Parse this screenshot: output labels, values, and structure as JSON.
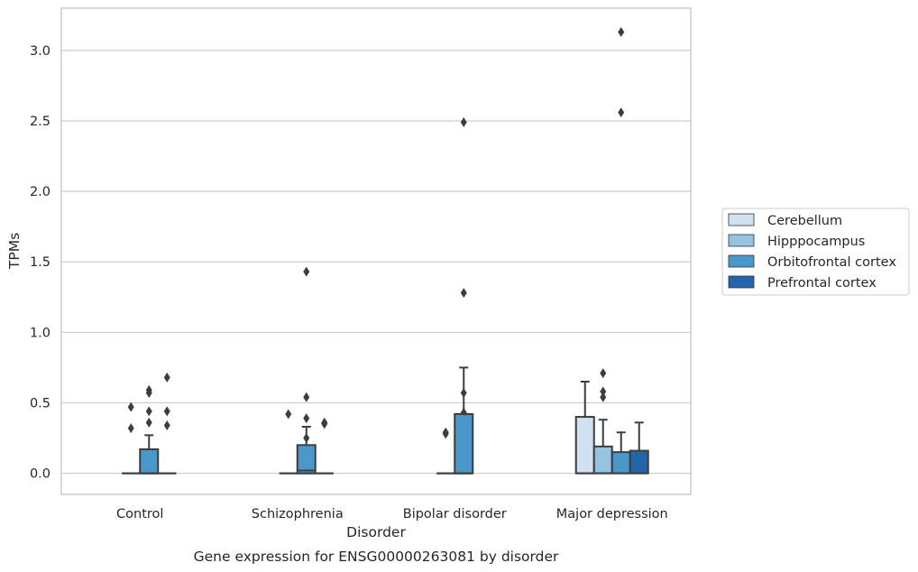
{
  "chart_data": {
    "type": "box",
    "title": "",
    "caption": "Gene expression for ENSG00000263081 by disorder",
    "xlabel": "Disorder",
    "ylabel": "TPMs",
    "ylim": [
      -0.15,
      3.3
    ],
    "yticks": [
      0.0,
      0.5,
      1.0,
      1.5,
      2.0,
      2.5,
      3.0
    ],
    "ytick_labels": [
      "0.0",
      "0.5",
      "1.0",
      "1.5",
      "2.0",
      "2.5",
      "3.0"
    ],
    "grid": "horizontal",
    "legend_position": "right",
    "categories": [
      "Control",
      "Schizophrenia",
      "Bipolar disorder",
      "Major depression"
    ],
    "series": [
      {
        "name": "Cerebellum",
        "color": "#d0e1f2",
        "boxes": [
          null,
          null,
          null,
          {
            "min": 0.0,
            "q1": 0.0,
            "median": 0.0,
            "q3": 0.4,
            "max": 0.65,
            "outliers": []
          }
        ]
      },
      {
        "name": "Hipppocampus",
        "color": "#94c4df",
        "boxes": [
          {
            "min": 0.0,
            "q1": 0.0,
            "median": 0.0,
            "q3": 0.0,
            "max": 0.0,
            "outliers": [
              0.32,
              0.47
            ]
          },
          {
            "min": 0.0,
            "q1": 0.0,
            "median": 0.0,
            "q3": 0.0,
            "max": 0.0,
            "outliers": [
              0.42
            ]
          },
          {
            "min": 0.0,
            "q1": 0.0,
            "median": 0.0,
            "q3": 0.0,
            "max": 0.0,
            "outliers": [
              0.28,
              0.29
            ]
          },
          {
            "min": 0.0,
            "q1": 0.0,
            "median": 0.0,
            "q3": 0.19,
            "max": 0.38,
            "outliers": [
              0.54,
              0.58,
              0.71
            ]
          }
        ]
      },
      {
        "name": "Orbitofrontal cortex",
        "color": "#4a98c9",
        "boxes": [
          {
            "min": 0.0,
            "q1": 0.0,
            "median": 0.0,
            "q3": 0.0,
            "max": 0.0,
            "outliers": [
              0.36,
              0.44
            ]
          },
          {
            "min": 0.0,
            "q1": 0.0,
            "median": 0.0,
            "q3": 0.0,
            "max": 0.0,
            "outliers": [
              0.25,
              0.39
            ]
          },
          {
            "min": 0.0,
            "q1": 0.0,
            "median": 0.0,
            "q3": 0.0,
            "max": 0.0,
            "outliers": [
              0.43,
              0.57,
              1.28
            ]
          },
          {
            "min": 0.0,
            "q1": 0.0,
            "median": 0.0,
            "q3": 0.15,
            "max": 0.29,
            "outliers": [
              2.56,
              3.13
            ]
          }
        ]
      },
      {
        "name": "Prefrontal cortex",
        "color": "#2464a8",
        "boxes": [
          null,
          null,
          null,
          {
            "min": 0.0,
            "q1": 0.0,
            "median": 0.0,
            "q3": 0.16,
            "max": 0.36,
            "outliers": []
          }
        ]
      }
    ],
    "extra_boxes": [
      {
        "category": "Control",
        "color": "#4a98c9",
        "slot": 2,
        "min": 0.0,
        "q1": 0.0,
        "median": 0.0,
        "q3": 0.17,
        "max": 0.27,
        "outliers": [
          0.57,
          0.59
        ]
      },
      {
        "category": "Control",
        "color": "#4a98c9",
        "slot": 3,
        "min": 0.0,
        "q1": 0.0,
        "median": 0.0,
        "q3": 0.0,
        "max": 0.0,
        "outliers": [
          0.34,
          0.44,
          0.68
        ]
      },
      {
        "category": "Schizophrenia",
        "color": "#4a98c9",
        "slot": 2,
        "min": 0.0,
        "q1": 0.0,
        "median": 0.02,
        "q3": 0.2,
        "max": 0.33,
        "outliers": [
          0.54,
          1.43
        ]
      },
      {
        "category": "Schizophrenia",
        "color": "#4a98c9",
        "slot": 3,
        "min": 0.0,
        "q1": 0.0,
        "median": 0.0,
        "q3": 0.0,
        "max": 0.0,
        "outliers": [
          0.35,
          0.36
        ]
      },
      {
        "category": "Bipolar disorder",
        "color": "#4a98c9",
        "slot": 2,
        "min": 0.0,
        "q1": 0.0,
        "median": 0.0,
        "q3": 0.42,
        "max": 0.75,
        "outliers": [
          2.49
        ]
      }
    ]
  }
}
